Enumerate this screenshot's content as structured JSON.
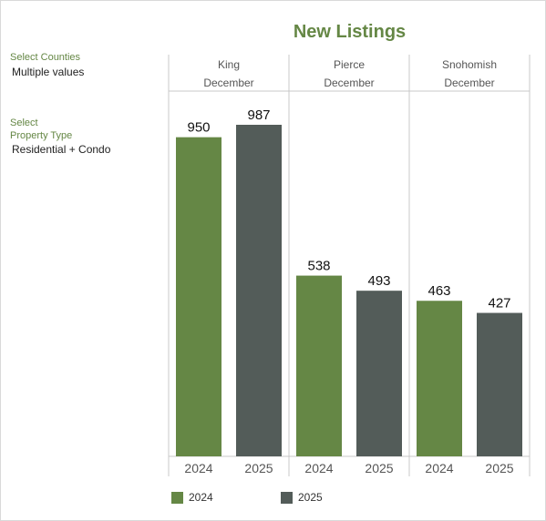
{
  "colors": {
    "accent": "#658745",
    "series_2024": "#658745",
    "series_2025": "#535c59"
  },
  "filters": {
    "counties_label": "Select Counties",
    "counties_value": "Multiple values",
    "property_label_1": "Select",
    "property_label_2": "Property Type",
    "property_value": "Residential + Condo"
  },
  "chart_data": {
    "type": "bar",
    "title": "New Listings",
    "panels": [
      {
        "county": "King",
        "month": "December",
        "categories": [
          "2024",
          "2025"
        ],
        "values": [
          950,
          987
        ]
      },
      {
        "county": "Pierce",
        "month": "December",
        "categories": [
          "2024",
          "2025"
        ],
        "values": [
          538,
          493
        ]
      },
      {
        "county": "Snohomish",
        "month": "December",
        "categories": [
          "2024",
          "2025"
        ],
        "values": [
          463,
          427
        ]
      }
    ],
    "series": [
      {
        "name": "2024",
        "color": "#658745"
      },
      {
        "name": "2025",
        "color": "#535c59"
      }
    ],
    "ylim": [
      0,
      987
    ],
    "grid": false,
    "legend_position": "bottom-left"
  }
}
